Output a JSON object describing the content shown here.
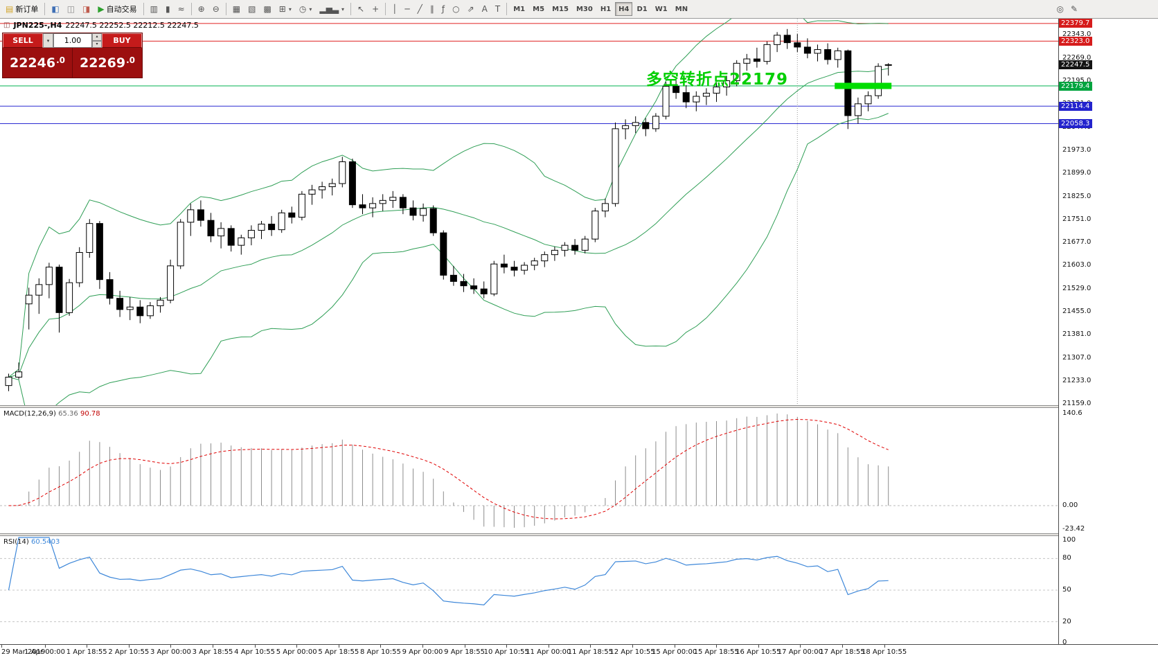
{
  "colors": {
    "bull": "#ffffff",
    "bear": "#000000",
    "bollinger": "#2e9e55",
    "macd_histogram": "#8c8c8c",
    "macd_signal": "#e00000",
    "rsi_line": "#3d87d9",
    "resistance_line": "#e02222",
    "pivot_line": "#00b050",
    "support_line": "#2a2ad2",
    "support_zone": "#00dd00",
    "trade_panel_red": "#9c0f0f"
  },
  "toolbar": {
    "dropdown_glyph": "▾",
    "buttons_left": [
      {
        "name": "new-order-button",
        "label": "新订单",
        "glyph": "▤",
        "glyph_color": "#d2a42a"
      },
      {
        "sep": true
      },
      {
        "name": "market-watch-button",
        "glyph": "◧",
        "glyph_color": "#3f6fb5"
      },
      {
        "name": "data-window-button",
        "glyph": "◫",
        "glyph_color": "#8a8a8a"
      },
      {
        "name": "navigator-button",
        "glyph": "◨",
        "glyph_color": "#bf5b4d"
      },
      {
        "name": "auto-trading-button",
        "label": "自动交易",
        "glyph": "▶",
        "glyph_color": "#2ca02c"
      },
      {
        "sep": true
      },
      {
        "name": "bar-chart-button",
        "glyph": "▥"
      },
      {
        "name": "candlestick-chart-button",
        "glyph": "▮"
      },
      {
        "name": "line-chart-button",
        "glyph": "≈"
      },
      {
        "sep": true
      },
      {
        "name": "zoom-in-button",
        "glyph": "⊕"
      },
      {
        "name": "zoom-out-button",
        "glyph": "⊖"
      },
      {
        "sep": true
      },
      {
        "name": "tile-windows-button",
        "glyph": "▦"
      },
      {
        "name": "cascade-windows-button",
        "glyph": "▧"
      },
      {
        "name": "arrange-icons-button",
        "glyph": "▩"
      },
      {
        "name": "charts-list-button",
        "glyph": "⊞",
        "dropdown": true
      },
      {
        "name": "periods-button",
        "glyph": "◷",
        "dropdown": true
      },
      {
        "name": "indicators-button",
        "glyph": "▂▅▃",
        "dropdown": true
      },
      {
        "sep": true
      },
      {
        "name": "cursor-button",
        "glyph": "↖"
      },
      {
        "name": "crosshair-button",
        "glyph": "+"
      },
      {
        "sep": true
      },
      {
        "name": "vertical-line-button",
        "glyph": "│"
      },
      {
        "name": "horizontal-line-button",
        "glyph": "─"
      },
      {
        "name": "trendline-button",
        "glyph": "╱"
      },
      {
        "name": "equidistant-channel-button",
        "glyph": "∥"
      },
      {
        "name": "fibonacci-button",
        "glyph": "ƒ"
      },
      {
        "name": "shapes-button",
        "glyph": "○"
      },
      {
        "name": "arrows-button",
        "glyph": "⇗"
      },
      {
        "name": "text-button",
        "glyph": "A"
      },
      {
        "name": "text-label-button",
        "glyph": "T"
      },
      {
        "sep": true
      }
    ],
    "timeframes": [
      "M1",
      "M5",
      "M15",
      "M30",
      "H1",
      "H4",
      "D1",
      "W1",
      "MN"
    ],
    "active_timeframe": "H4",
    "buttons_right": [
      {
        "name": "search-button",
        "glyph": "◎"
      },
      {
        "name": "quick-edit-button",
        "glyph": "✎"
      }
    ]
  },
  "chart": {
    "icon": "◫",
    "title": "JPN225-,H4",
    "ohlc": "22247.5 22252.5 22212.5 22247.5"
  },
  "trade_panel": {
    "sell_label": "SELL",
    "buy_label": "BUY",
    "volume": "1.00",
    "sell_price_main": "22246",
    "sell_price_sup": ".0",
    "buy_price_main": "22269",
    "buy_price_sup": ".0",
    "icons": {
      "dropdown": "▾",
      "spin_up": "▴",
      "spin_down": "▾"
    }
  },
  "annotation": {
    "text": "多空转折点22179",
    "color": "#00cf00"
  },
  "macd_panel": {
    "label": "MACD(12,26,9)",
    "main_value": "65.36",
    "signal_value": "90.78"
  },
  "rsi_panel": {
    "label": "RSI(14)",
    "value": "60.5403"
  },
  "price_axis": {
    "ticks": [
      {
        "label": "22343.0",
        "price": 22343.0
      },
      {
        "label": "22269.0",
        "price": 22269.0
      },
      {
        "label": "22195.0",
        "price": 22195.0
      },
      {
        "label": "22121.0",
        "price": 22121.0
      },
      {
        "label": "22047.0",
        "price": 22047.0
      },
      {
        "label": "21973.0",
        "price": 21973.0
      },
      {
        "label": "21899.0",
        "price": 21899.0
      },
      {
        "label": "21825.0",
        "price": 21825.0
      },
      {
        "label": "21751.0",
        "price": 21751.0
      },
      {
        "label": "21677.0",
        "price": 21677.0
      },
      {
        "label": "21603.0",
        "price": 21603.0
      },
      {
        "label": "21529.0",
        "price": 21529.0
      },
      {
        "label": "21455.0",
        "price": 21455.0
      },
      {
        "label": "21381.0",
        "price": 21381.0
      },
      {
        "label": "21307.0",
        "price": 21307.0
      },
      {
        "label": "21233.0",
        "price": 21233.0
      },
      {
        "label": "21159.0",
        "price": 21159.0
      }
    ],
    "markers": [
      {
        "name": "marker-resistance-22379",
        "label": "22379.7",
        "price": 22379.7,
        "bg": "#d61c1c"
      },
      {
        "name": "marker-resistance-22323",
        "label": "22323.0",
        "price": 22323.0,
        "bg": "#d61c1c"
      },
      {
        "name": "marker-current-price",
        "label": "22247.5",
        "price": 22247.5,
        "bg": "#141414"
      },
      {
        "name": "marker-pivot-22179",
        "label": "22179.4",
        "price": 22179.4,
        "bg": "#00a33e"
      },
      {
        "name": "marker-support-22114",
        "label": "22114.4",
        "price": 22114.4,
        "bg": "#2323cd"
      },
      {
        "name": "marker-support-22058",
        "label": "22058.3",
        "price": 22058.3,
        "bg": "#2323cd"
      }
    ]
  },
  "chart_data": {
    "type": "candlestick",
    "symbol": "JPN225-",
    "period": "H4",
    "ohlc_current": {
      "open": 22247.5,
      "high": 22252.5,
      "low": 22212.5,
      "close": 22247.5
    },
    "price_range": [
      21155,
      22395
    ],
    "candles": [
      [
        21218,
        21256,
        21200,
        21245
      ],
      [
        21245,
        21292,
        21238,
        21262
      ],
      [
        21480,
        21532,
        21398,
        21508
      ],
      [
        21508,
        21562,
        21448,
        21542
      ],
      [
        21542,
        21612,
        21498,
        21598
      ],
      [
        21598,
        21606,
        21388,
        21452
      ],
      [
        21452,
        21560,
        21442,
        21548
      ],
      [
        21548,
        21662,
        21534,
        21645
      ],
      [
        21645,
        21752,
        21628,
        21738
      ],
      [
        21738,
        21746,
        21528,
        21558
      ],
      [
        21558,
        21582,
        21478,
        21498
      ],
      [
        21498,
        21522,
        21438,
        21462
      ],
      [
        21462,
        21502,
        21428,
        21470
      ],
      [
        21470,
        21492,
        21418,
        21442
      ],
      [
        21442,
        21486,
        21432,
        21474
      ],
      [
        21474,
        21502,
        21452,
        21492
      ],
      [
        21492,
        21622,
        21482,
        21602
      ],
      [
        21602,
        21752,
        21592,
        21742
      ],
      [
        21742,
        21802,
        21698,
        21782
      ],
      [
        21782,
        21812,
        21728,
        21748
      ],
      [
        21748,
        21772,
        21678,
        21698
      ],
      [
        21698,
        21742,
        21658,
        21722
      ],
      [
        21722,
        21732,
        21648,
        21668
      ],
      [
        21668,
        21702,
        21638,
        21692
      ],
      [
        21692,
        21732,
        21668,
        21716
      ],
      [
        21716,
        21746,
        21688,
        21736
      ],
      [
        21736,
        21762,
        21698,
        21718
      ],
      [
        21718,
        21782,
        21708,
        21772
      ],
      [
        21772,
        21792,
        21738,
        21758
      ],
      [
        21758,
        21842,
        21748,
        21832
      ],
      [
        21832,
        21862,
        21798,
        21846
      ],
      [
        21846,
        21872,
        21818,
        21856
      ],
      [
        21856,
        21882,
        21828,
        21866
      ],
      [
        21866,
        21952,
        21854,
        21936
      ],
      [
        21936,
        21946,
        21788,
        21798
      ],
      [
        21798,
        21832,
        21768,
        21788
      ],
      [
        21788,
        21822,
        21758,
        21802
      ],
      [
        21802,
        21832,
        21778,
        21812
      ],
      [
        21812,
        21842,
        21788,
        21822
      ],
      [
        21822,
        21832,
        21768,
        21788
      ],
      [
        21788,
        21812,
        21748,
        21764
      ],
      [
        21764,
        21802,
        21744,
        21786
      ],
      [
        21786,
        21796,
        21698,
        21708
      ],
      [
        21708,
        21716,
        21558,
        21572
      ],
      [
        21572,
        21602,
        21538,
        21552
      ],
      [
        21552,
        21576,
        21518,
        21538
      ],
      [
        21538,
        21562,
        21512,
        21528
      ],
      [
        21528,
        21552,
        21498,
        21512
      ],
      [
        21512,
        21618,
        21505,
        21608
      ],
      [
        21608,
        21638,
        21578,
        21598
      ],
      [
        21598,
        21618,
        21568,
        21588
      ],
      [
        21588,
        21614,
        21574,
        21604
      ],
      [
        21604,
        21628,
        21588,
        21618
      ],
      [
        21618,
        21648,
        21598,
        21638
      ],
      [
        21638,
        21664,
        21618,
        21652
      ],
      [
        21652,
        21678,
        21632,
        21668
      ],
      [
        21668,
        21688,
        21638,
        21652
      ],
      [
        21652,
        21698,
        21642,
        21688
      ],
      [
        21688,
        21788,
        21678,
        21778
      ],
      [
        21778,
        21818,
        21758,
        21802
      ],
      [
        21802,
        22062,
        21792,
        22042
      ],
      [
        22042,
        22072,
        22008,
        22052
      ],
      [
        22052,
        22082,
        22028,
        22062
      ],
      [
        22062,
        22076,
        22018,
        22042
      ],
      [
        22042,
        22092,
        22032,
        22082
      ],
      [
        22082,
        22192,
        22072,
        22178
      ],
      [
        22178,
        22202,
        22138,
        22158
      ],
      [
        22158,
        22182,
        22108,
        22128
      ],
      [
        22128,
        22162,
        22098,
        22146
      ],
      [
        22146,
        22172,
        22118,
        22156
      ],
      [
        22156,
        22192,
        22128,
        22176
      ],
      [
        22176,
        22212,
        22148,
        22196
      ],
      [
        22196,
        22262,
        22178,
        22252
      ],
      [
        22252,
        22282,
        22228,
        22266
      ],
      [
        22266,
        22302,
        22238,
        22258
      ],
      [
        22258,
        22322,
        22248,
        22312
      ],
      [
        22312,
        22352,
        22288,
        22342
      ],
      [
        22342,
        22362,
        22298,
        22318
      ],
      [
        22318,
        22346,
        22288,
        22304
      ],
      [
        22304,
        22332,
        22268,
        22284
      ],
      [
        22284,
        22312,
        22258,
        22296
      ],
      [
        22296,
        22316,
        22248,
        22264
      ],
      [
        22264,
        22302,
        22238,
        22292
      ],
      [
        22292,
        22296,
        22041,
        22084
      ],
      [
        22084,
        22142,
        22058,
        22122
      ],
      [
        22122,
        22162,
        22098,
        22148
      ],
      [
        22148,
        22252,
        22138,
        22242
      ],
      [
        22247.5,
        22252.5,
        22212.5,
        22247.5
      ]
    ],
    "horizontal_lines": [
      {
        "price": 22379.7,
        "color": "#e02222"
      },
      {
        "price": 22323.0,
        "color": "#e02222"
      },
      {
        "price": 22179.4,
        "color": "#00b050"
      },
      {
        "price": 22114.4,
        "color": "#2a2ad2"
      },
      {
        "price": 22058.3,
        "color": "#2a2ad2"
      }
    ],
    "support_zone": {
      "price": 22179.4,
      "start_index": 82,
      "end_index": 87,
      "color": "#00dd00"
    },
    "separator_index": 78,
    "indicators": {
      "bollinger": {
        "period": 20,
        "deviation": 2,
        "color": "#2e9e55"
      },
      "macd": {
        "fast": 12,
        "slow": 26,
        "signal": 9,
        "current_main": 65.36,
        "current_signal": 90.78,
        "axis_labels": [
          "140.6",
          "0.00",
          "-23.42"
        ]
      },
      "rsi": {
        "period": 14,
        "current": 60.5403,
        "levels": [
          80,
          50,
          20
        ],
        "axis_labels": [
          "100",
          "80",
          "50",
          "20",
          "0"
        ]
      }
    },
    "time_labels": [
      "29 Mar 2019",
      "1 Apr 00:00",
      "1 Apr 18:55",
      "2 Apr 10:55",
      "3 Apr 00:00",
      "3 Apr 18:55",
      "4 Apr 10:55",
      "5 Apr 00:00",
      "5 Apr 18:55",
      "8 Apr 10:55",
      "9 Apr 00:00",
      "9 Apr 18:55",
      "10 Apr 10:55",
      "11 Apr 00:00",
      "11 Apr 18:55",
      "12 Apr 10:55",
      "15 Apr 00:00",
      "15 Apr 18:55",
      "16 Apr 10:55",
      "17 Apr 00:00",
      "17 Apr 18:55",
      "18 Apr 10:55"
    ]
  }
}
